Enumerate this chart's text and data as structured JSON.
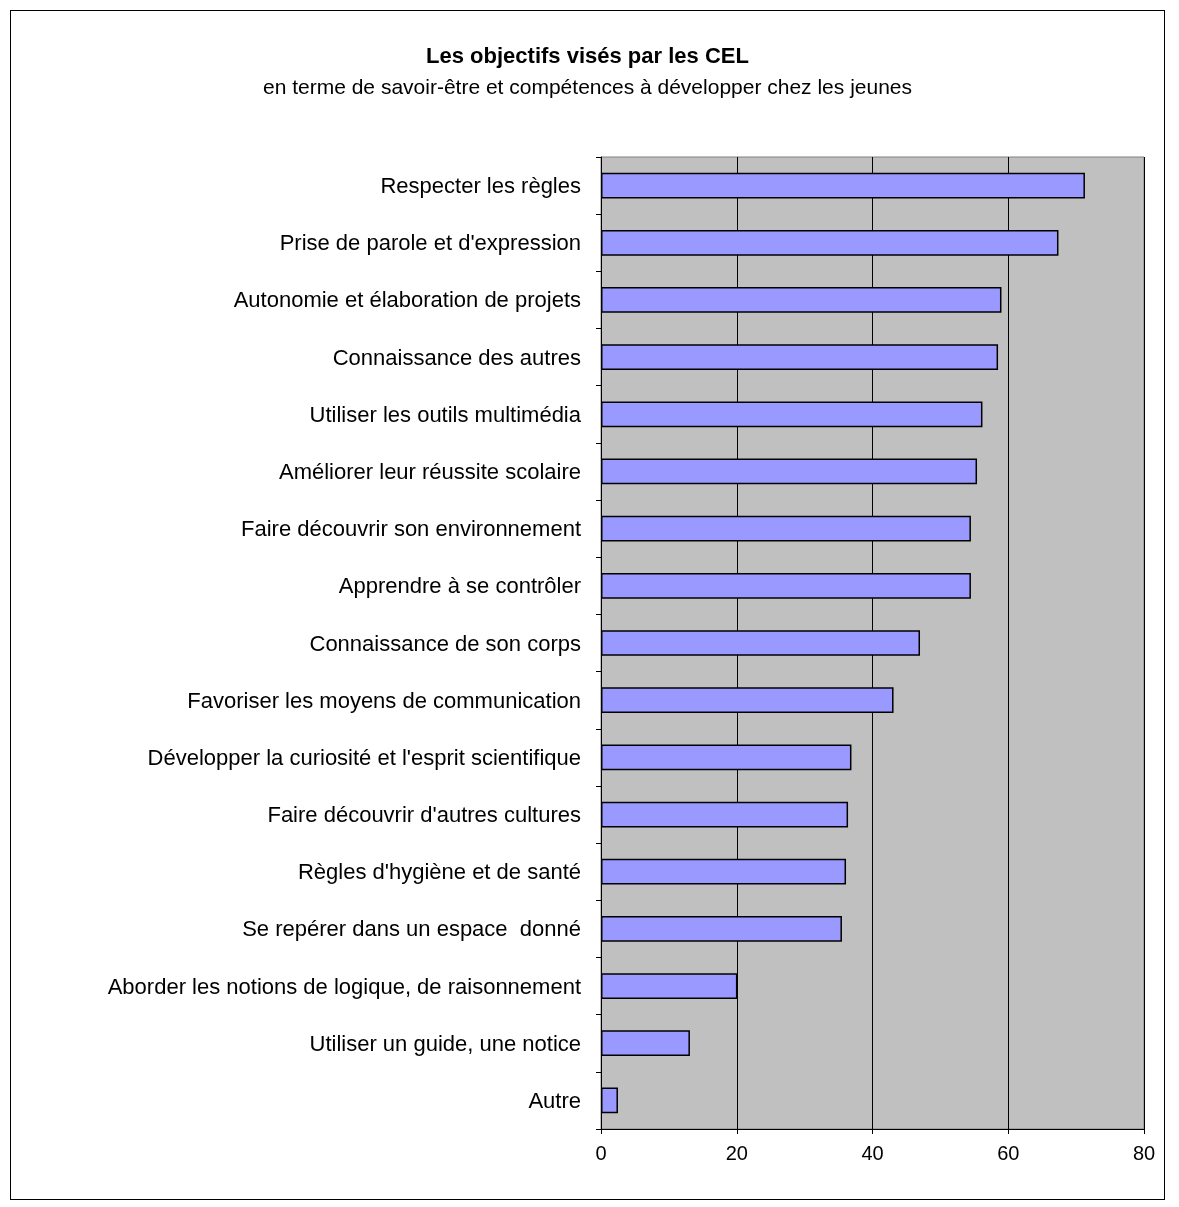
{
  "chart_data": {
    "type": "bar",
    "orientation": "horizontal",
    "title": "Les objectifs visés par les CEL",
    "subtitle": "en terme de savoir-être et compétences à développer chez les jeunes",
    "categories": [
      "Respecter les règles",
      "Prise de parole et d'expression",
      "Autonomie et élaboration de projets",
      "Connaissance des autres",
      "Utiliser les outils multimédia",
      "Améliorer leur réussite scolaire",
      "Faire découvrir son environnement",
      "Apprendre à se contrôler",
      "Connaissance de son corps",
      "Favoriser les moyens de communication",
      "Développer la curiosité et l'esprit scientifique",
      "Faire découvrir d'autres cultures",
      "Règles d'hygiène et de santé",
      "Se repérer dans un espace  donné",
      "Aborder les notions de logique, de raisonnement",
      "Utiliser un guide, une notice",
      "Autre"
    ],
    "values": [
      71.3,
      67.4,
      59.0,
      58.5,
      56.2,
      55.4,
      54.5,
      54.5,
      47.0,
      43.1,
      36.9,
      36.4,
      36.1,
      35.5,
      20.1,
      13.1,
      2.5
    ],
    "color": "#9999ff",
    "xlim": [
      0,
      80
    ],
    "xticks": [
      0,
      20,
      40,
      60,
      80
    ],
    "grid": "x"
  }
}
